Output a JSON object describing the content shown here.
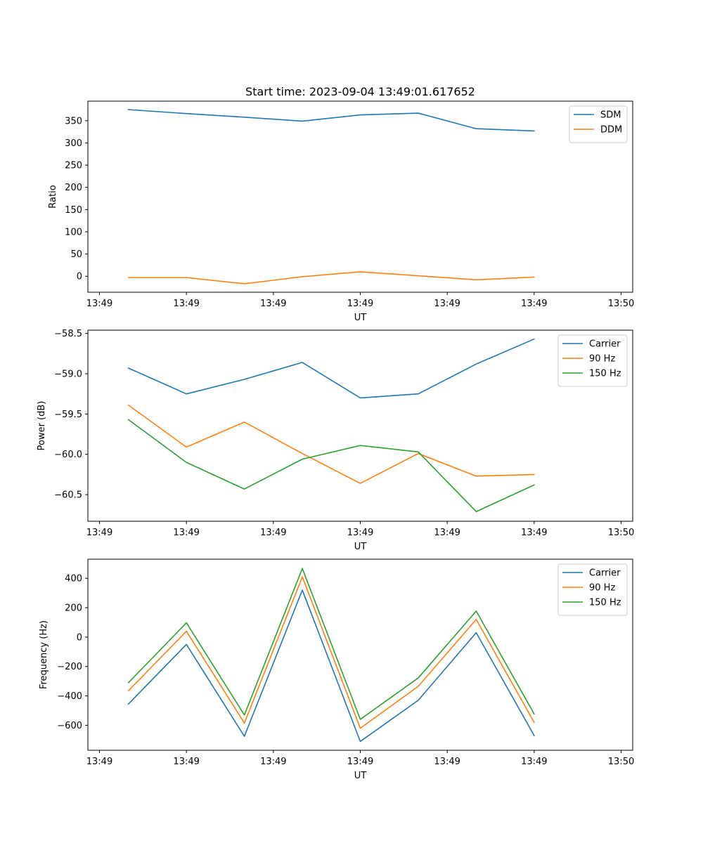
{
  "chart_data": [
    {
      "type": "line",
      "title": "Start time: 2023-09-04 13:49:01.617652",
      "xlabel": "UT",
      "ylabel": "Ratio",
      "xlim": [
        -0.2,
        9.2
      ],
      "ylim": [
        -36,
        394
      ],
      "x": [
        0.5,
        1.5,
        2.5,
        3.5,
        4.5,
        5.5,
        6.5,
        7.5
      ],
      "x_ticks": [
        0,
        1.5,
        3,
        4.5,
        6,
        7.5,
        9
      ],
      "x_tick_labels": [
        "13:49",
        "13:49",
        "13:49",
        "13:49",
        "13:49",
        "13:49",
        "13:50"
      ],
      "y_ticks": [
        0,
        50,
        100,
        150,
        200,
        250,
        300,
        350
      ],
      "y_tick_labels": [
        "0",
        "50",
        "100",
        "150",
        "200",
        "250",
        "300",
        "350"
      ],
      "legend_position": "top-right",
      "grid": false,
      "series": [
        {
          "name": "SDM",
          "color": "#1f77b4",
          "values": [
            375,
            366,
            358,
            349,
            363,
            367,
            332,
            327
          ]
        },
        {
          "name": "DDM",
          "color": "#ff7f0e",
          "values": [
            -3,
            -3,
            -17,
            -1,
            10,
            1,
            -8,
            -2
          ]
        }
      ]
    },
    {
      "type": "line",
      "title": "",
      "xlabel": "UT",
      "ylabel": "Power (dB)",
      "xlim": [
        -0.2,
        9.2
      ],
      "ylim": [
        -60.83,
        -58.46
      ],
      "x": [
        0.5,
        1.5,
        2.5,
        3.5,
        4.5,
        5.5,
        6.5,
        7.5
      ],
      "x_ticks": [
        0,
        1.5,
        3,
        4.5,
        6,
        7.5,
        9
      ],
      "x_tick_labels": [
        "13:49",
        "13:49",
        "13:49",
        "13:49",
        "13:49",
        "13:49",
        "13:50"
      ],
      "y_ticks": [
        -60.5,
        -60.0,
        -59.5,
        -59.0,
        -58.5
      ],
      "y_tick_labels": [
        "−60.5",
        "−60.0",
        "−59.5",
        "−59.0",
        "−58.5"
      ],
      "legend_position": "top-right",
      "grid": false,
      "series": [
        {
          "name": "Carrier",
          "color": "#1f77b4",
          "values": [
            -58.93,
            -59.25,
            -59.07,
            -58.86,
            -59.3,
            -59.25,
            -58.88,
            -58.57
          ]
        },
        {
          "name": "90 Hz",
          "color": "#ff7f0e",
          "values": [
            -59.39,
            -59.91,
            -59.6,
            -59.99,
            -60.36,
            -59.99,
            -60.27,
            -60.25
          ]
        },
        {
          "name": "150 Hz",
          "color": "#2ca02c",
          "values": [
            -59.57,
            -60.1,
            -60.43,
            -60.06,
            -59.89,
            -59.97,
            -60.71,
            -60.38
          ]
        }
      ]
    },
    {
      "type": "line",
      "title": "",
      "xlabel": "UT",
      "ylabel": "Frequency (Hz)",
      "xlim": [
        -0.2,
        9.2
      ],
      "ylim": [
        -770,
        530
      ],
      "x": [
        0.5,
        1.5,
        2.5,
        3.5,
        4.5,
        5.5,
        6.5,
        7.5
      ],
      "x_ticks": [
        0,
        1.5,
        3,
        4.5,
        6,
        7.5,
        9
      ],
      "x_tick_labels": [
        "13:49",
        "13:49",
        "13:49",
        "13:49",
        "13:49",
        "13:49",
        "13:50"
      ],
      "y_ticks": [
        -600,
        -400,
        -200,
        0,
        200,
        400
      ],
      "y_tick_labels": [
        "−600",
        "−400",
        "−200",
        "0",
        "200",
        "400"
      ],
      "legend_position": "top-right",
      "grid": false,
      "series": [
        {
          "name": "Carrier",
          "color": "#1f77b4",
          "values": [
            -455,
            -50,
            -675,
            320,
            -710,
            -430,
            30,
            -670
          ]
        },
        {
          "name": "90 Hz",
          "color": "#ff7f0e",
          "values": [
            -365,
            40,
            -585,
            410,
            -620,
            -335,
            120,
            -580
          ]
        },
        {
          "name": "150 Hz",
          "color": "#2ca02c",
          "values": [
            -310,
            97,
            -530,
            467,
            -560,
            -278,
            177,
            -523
          ]
        }
      ]
    }
  ]
}
